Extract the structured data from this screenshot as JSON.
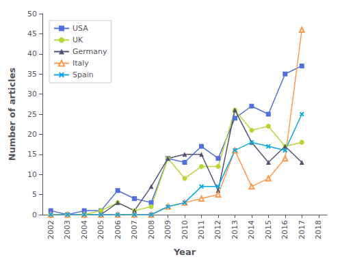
{
  "chart_data": {
    "type": "line",
    "xlabel": "Year",
    "ylabel": "Number of articles",
    "x": [
      2002,
      2003,
      2004,
      2005,
      2006,
      2007,
      2008,
      2009,
      2010,
      2011,
      2012,
      2013,
      2014,
      2015,
      2016,
      2017
    ],
    "series": [
      {
        "name": "USA",
        "marker": "square",
        "values": [
          1,
          0,
          1,
          1,
          6,
          4,
          3,
          14,
          13,
          17,
          14,
          24,
          27,
          25,
          35,
          37
        ]
      },
      {
        "name": "UK",
        "marker": "circle",
        "values": [
          0,
          0,
          0,
          1,
          3,
          1,
          2,
          14,
          9,
          12,
          12,
          26,
          21,
          22,
          17,
          18
        ]
      },
      {
        "name": "Germany",
        "marker": "triangle",
        "values": [
          0,
          0,
          0,
          0,
          3,
          1,
          7,
          14,
          15,
          15,
          6,
          26,
          18,
          13,
          17,
          13
        ]
      },
      {
        "name": "Italy",
        "marker": "triangle-open",
        "values": [
          0,
          0,
          0,
          0,
          0,
          0,
          0,
          2,
          3,
          4,
          5,
          16,
          7,
          9,
          14,
          46
        ]
      },
      {
        "name": "Spain",
        "marker": "x",
        "values": [
          0,
          0,
          0,
          0,
          0,
          0,
          0,
          2,
          3,
          7,
          7,
          16,
          18,
          17,
          16,
          25
        ]
      }
    ],
    "xlim": [
      2001.5,
      2018.5
    ],
    "xticks": [
      2002,
      2003,
      2004,
      2005,
      2006,
      2007,
      2008,
      2009,
      2010,
      2011,
      2012,
      2013,
      2014,
      2015,
      2016,
      2017,
      2018
    ],
    "ylim": [
      0,
      50
    ],
    "yticks": [
      0,
      5,
      10,
      15,
      20,
      25,
      30,
      35,
      40,
      45,
      50
    ],
    "legend": "upper left",
    "grid": false
  }
}
